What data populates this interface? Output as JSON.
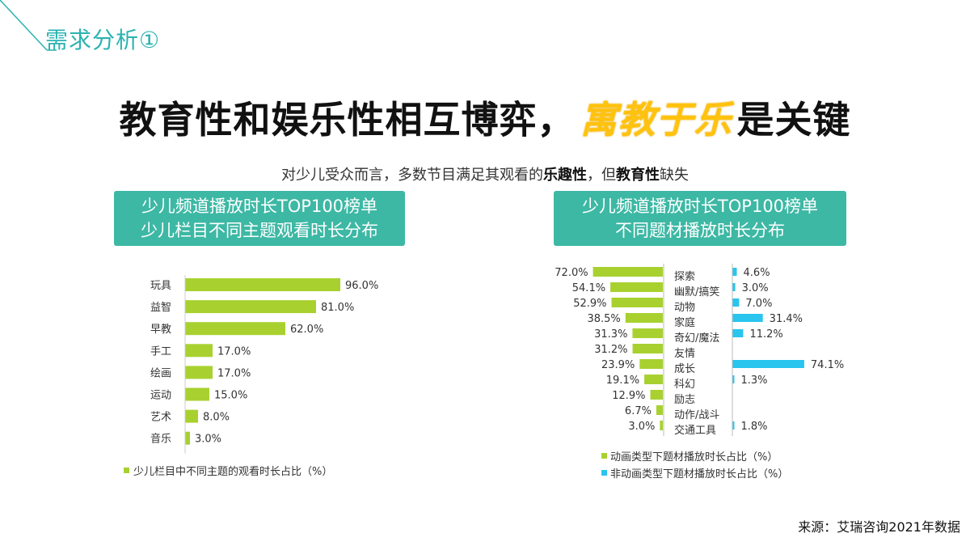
{
  "section_title": "需求分析①",
  "headline": {
    "pre": "教育性和娱乐性相互博弈，",
    "highlight": "寓教于乐",
    "post": "是关键"
  },
  "subtitle": {
    "part1": "对少儿受众而言，多数节目满足其观看的",
    "bold1": "乐趣性",
    "part2": "，但",
    "bold2": "教育性",
    "part3": "缺失"
  },
  "left_banner": {
    "line1": "少儿频道播放时长TOP100榜单",
    "line2": "少儿栏目不同主题观看时长分布"
  },
  "right_banner": {
    "line1": "少儿频道播放时长TOP100榜单",
    "line2": "不同题材播放时长分布"
  },
  "source": "来源：艾瑞咨询2021年数据",
  "colors": {
    "teal": "#3db8a4",
    "green": "#a8d130",
    "blue": "#29c5ee",
    "yellow": "#ffc20e"
  },
  "chart_data": [
    {
      "type": "bar",
      "orientation": "horizontal",
      "categories": [
        "玩具",
        "益智",
        "早教",
        "手工",
        "绘画",
        "运动",
        "艺术",
        "音乐"
      ],
      "series": [
        {
          "name": "少儿栏目中不同主题的观看时长占比（%）",
          "values": [
            96.0,
            81.0,
            62.0,
            17.0,
            17.0,
            15.0,
            8.0,
            3.0
          ],
          "labels": [
            "96.0%",
            "81.0%",
            "62.0%",
            "17.0%",
            "17.0%",
            "15.0%",
            "8.0%",
            "3.0%"
          ]
        }
      ],
      "legend": "bottom-left"
    },
    {
      "type": "bar",
      "orientation": "horizontal-diverging",
      "categories": [
        "探索",
        "幽默/搞笑",
        "动物",
        "家庭",
        "奇幻/魔法",
        "友情",
        "成长",
        "科幻",
        "励志",
        "动作/战斗",
        "交通工具"
      ],
      "series": [
        {
          "name": "动画类型下题材播放时长占比（%）",
          "values": [
            72.0,
            54.1,
            52.9,
            38.5,
            31.3,
            31.2,
            23.9,
            19.1,
            12.9,
            6.7,
            3.0
          ],
          "labels": [
            "72.0%",
            "54.1%",
            "52.9%",
            "38.5%",
            "31.3%",
            "31.2%",
            "23.9%",
            "19.1%",
            "12.9%",
            "6.7%",
            "3.0%"
          ]
        },
        {
          "name": "非动画类型下题材播放时长占比（%）",
          "values": [
            4.6,
            3.0,
            7.0,
            31.4,
            11.2,
            null,
            74.1,
            1.3,
            null,
            null,
            1.8
          ],
          "labels": [
            "4.6%",
            "3.0%",
            "7.0%",
            "31.4%",
            "11.2%",
            "",
            "74.1%",
            "1.3%",
            "",
            "",
            "1.8%"
          ]
        }
      ],
      "legend": "bottom"
    }
  ]
}
